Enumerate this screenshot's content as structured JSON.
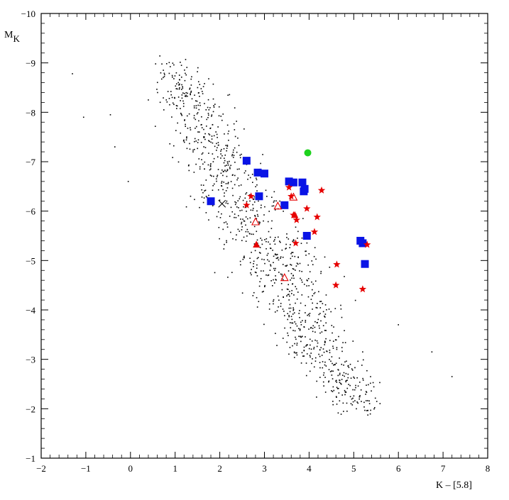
{
  "chart_data": {
    "type": "scatter",
    "xlabel": "K – [5.8]",
    "ylabel": "M",
    "ylabel_subscript": "K",
    "xlim": [
      -2,
      8
    ],
    "ylim": [
      -1,
      -10
    ],
    "y_axis_inverted": true,
    "grid": false,
    "x_ticks": [
      -2,
      -1,
      0,
      1,
      2,
      3,
      4,
      5,
      6,
      7,
      8
    ],
    "y_ticks": [
      -1,
      -2,
      -3,
      -4,
      -5,
      -6,
      -7,
      -8,
      -9,
      -10
    ],
    "x_tick_labels": [
      "−2",
      "−1",
      "0",
      "1",
      "2",
      "3",
      "4",
      "5",
      "6",
      "7",
      "8"
    ],
    "y_tick_labels": [
      "−1",
      "−2",
      "−3",
      "−4",
      "−5",
      "−6",
      "−7",
      "−8",
      "−9",
      "−10"
    ],
    "colors": {
      "field_points": "#000000",
      "blue_squares": "#0a14e6",
      "red_stars": "#e60000",
      "red_triangles": "#e60000",
      "green_circle": "#1ed21e"
    },
    "series": [
      {
        "marker": "square",
        "color": "#0a14e6",
        "points": [
          [
            1.8,
            -6.2
          ],
          [
            2.6,
            -7.02
          ],
          [
            2.85,
            -6.78
          ],
          [
            3.0,
            -6.76
          ],
          [
            2.88,
            -6.3
          ],
          [
            3.55,
            -6.6
          ],
          [
            3.65,
            -6.58
          ],
          [
            3.85,
            -6.58
          ],
          [
            3.9,
            -6.45
          ],
          [
            3.88,
            -6.4
          ],
          [
            3.45,
            -6.12
          ],
          [
            3.95,
            -5.5
          ],
          [
            5.15,
            -5.4
          ],
          [
            5.2,
            -5.35
          ],
          [
            5.25,
            -4.93
          ]
        ]
      },
      {
        "marker": "star",
        "color": "#e60000",
        "points": [
          [
            2.7,
            -6.3
          ],
          [
            2.6,
            -6.12
          ],
          [
            3.55,
            -6.48
          ],
          [
            4.28,
            -6.42
          ],
          [
            3.6,
            -6.3
          ],
          [
            3.95,
            -6.05
          ],
          [
            3.65,
            -5.92
          ],
          [
            3.72,
            -5.82
          ],
          [
            4.18,
            -5.88
          ],
          [
            4.12,
            -5.58
          ],
          [
            3.7,
            -5.35
          ],
          [
            4.62,
            -4.92
          ],
          [
            5.3,
            -5.32
          ],
          [
            4.6,
            -4.5
          ],
          [
            5.2,
            -4.42
          ]
        ]
      },
      {
        "marker": "triangle-filled",
        "color": "#e60000",
        "points": [
          [
            2.82,
            -5.32
          ],
          [
            3.68,
            -5.92
          ]
        ]
      },
      {
        "marker": "triangle-open",
        "color": "#e60000",
        "points": [
          [
            3.3,
            -6.1
          ],
          [
            3.65,
            -6.28
          ],
          [
            2.8,
            -5.78
          ],
          [
            3.45,
            -4.65
          ]
        ]
      },
      {
        "marker": "circle",
        "color": "#1ed21e",
        "points": [
          [
            3.97,
            -7.18
          ]
        ]
      },
      {
        "marker": "cross",
        "color": "#000000",
        "points": [
          [
            2.05,
            -6.15
          ]
        ]
      },
      {
        "marker": "dot",
        "color": "#000000",
        "generated_field": {
          "count": 1100,
          "seed": 7,
          "sample_points": [
            [
              -1.3,
              -8.78
            ],
            [
              -1.05,
              -7.9
            ],
            [
              -0.45,
              -7.95
            ],
            [
              -0.35,
              -7.3
            ],
            [
              -0.05,
              -6.6
            ],
            [
              0.4,
              -8.25
            ],
            [
              6.0,
              -3.7
            ],
            [
              6.75,
              -3.15
            ],
            [
              7.2,
              -2.65
            ],
            [
              5.2,
              -3.15
            ],
            [
              4.85,
              -1.95
            ]
          ]
        }
      }
    ]
  }
}
